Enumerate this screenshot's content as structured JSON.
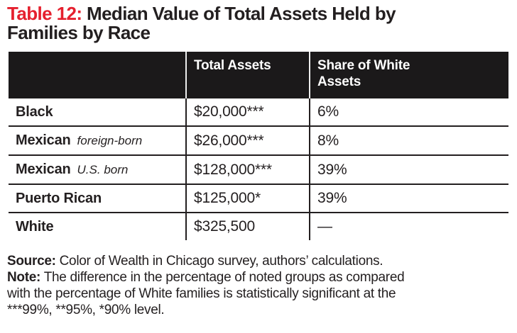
{
  "title": {
    "label": "Table 12:",
    "rest_line1": "Median Value of Total Assets Held by",
    "line2": "Families by Race"
  },
  "table": {
    "columns": {
      "col1": "",
      "col2": "Total Assets",
      "col3": "Share of White Assets"
    },
    "rows": [
      {
        "group": "Black",
        "total_assets": "$20,000***",
        "share_of_white": "6%"
      },
      {
        "group": "Mexican",
        "qualifier": "foreign-born",
        "total_assets": "$26,000***",
        "share_of_white": "8%"
      },
      {
        "group": "Mexican",
        "qualifier": "U.S. born",
        "total_assets": "$128,000***",
        "share_of_white": "39%"
      },
      {
        "group": "Puerto Rican",
        "total_assets": "$125,000*",
        "share_of_white": "39%"
      },
      {
        "group": "White",
        "total_assets": "$325,500",
        "share_of_white": "—"
      }
    ]
  },
  "footer": {
    "source_label": "Source:",
    "source_text": "Color of Wealth in Chicago survey, authors’ calculations.",
    "note_label": "Note:",
    "note_line1": "The difference in the percentage of noted groups as compared",
    "note_line2": "with the percentage of White families is statistically significant at the",
    "note_line3": "***99%, **95%, *90% level."
  },
  "colors": {
    "accent_red": "#e5202e",
    "header_bg": "#1b191a",
    "text": "#231f20",
    "header_divider": "#ededed"
  }
}
